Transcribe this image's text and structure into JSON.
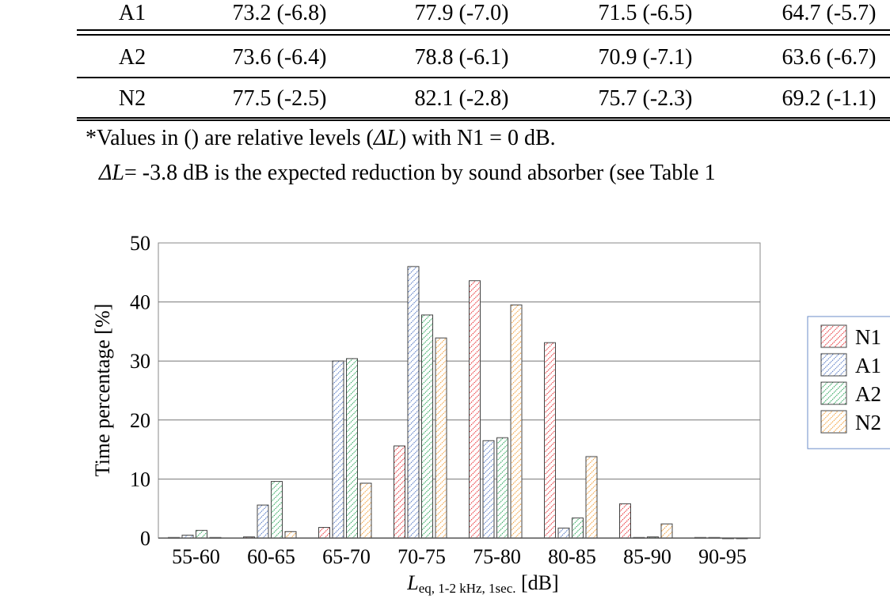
{
  "table": {
    "rows": [
      {
        "label": "A1",
        "values": [
          "73.2 (-6.8)",
          "77.9 (-7.0)",
          "71.5 (-6.5)",
          "64.7 (-5.7)"
        ]
      },
      {
        "label": "A2",
        "values": [
          "73.6 (-6.4)",
          "78.8 (-6.1)",
          "70.9 (-7.1)",
          "63.6 (-6.7)"
        ]
      },
      {
        "label": "N2",
        "values": [
          "77.5 (-2.5)",
          "82.1 (-2.8)",
          "75.7 (-2.3)",
          "69.2 (-1.1)"
        ]
      }
    ],
    "note1_pre": "*Values in () are relative levels (",
    "note1_sym": "ΔL",
    "note1_post": ") with N1 = 0 dB.",
    "note2_sym": "ΔL",
    "note2_post": " = -3.8 dB is the expected reduction by sound absorber (see Table 1"
  },
  "chart_data": {
    "type": "bar",
    "categories": [
      "55-60",
      "60-65",
      "65-70",
      "70-75",
      "75-80",
      "80-85",
      "85-90",
      "90-95"
    ],
    "series": [
      {
        "name": "N1",
        "color": "#e8262b",
        "values": [
          0.1,
          0.2,
          1.8,
          15.6,
          43.6,
          33.1,
          5.8,
          0.1
        ]
      },
      {
        "name": "A1",
        "color": "#4a6fc0",
        "values": [
          0.5,
          5.6,
          30.0,
          46.0,
          16.5,
          1.7,
          0.1,
          0.1
        ]
      },
      {
        "name": "A2",
        "color": "#1fa050",
        "values": [
          1.3,
          9.6,
          30.4,
          37.8,
          17.0,
          3.4,
          0.2,
          0.0
        ]
      },
      {
        "name": "N2",
        "color": "#f39a2e",
        "values": [
          0.1,
          1.1,
          9.3,
          33.9,
          39.5,
          13.8,
          2.4,
          0.0
        ]
      }
    ],
    "ylabel": "Time percentage [%]",
    "xlabel_main": "L",
    "xlabel_sub": "eq, 1-2 kHz, 1sec.",
    "xlabel_unit": " [dB]",
    "ylim": [
      0,
      50
    ],
    "yticks": [
      "0",
      "10",
      "20",
      "30",
      "40",
      "50"
    ],
    "grid": true,
    "legend": "right"
  }
}
